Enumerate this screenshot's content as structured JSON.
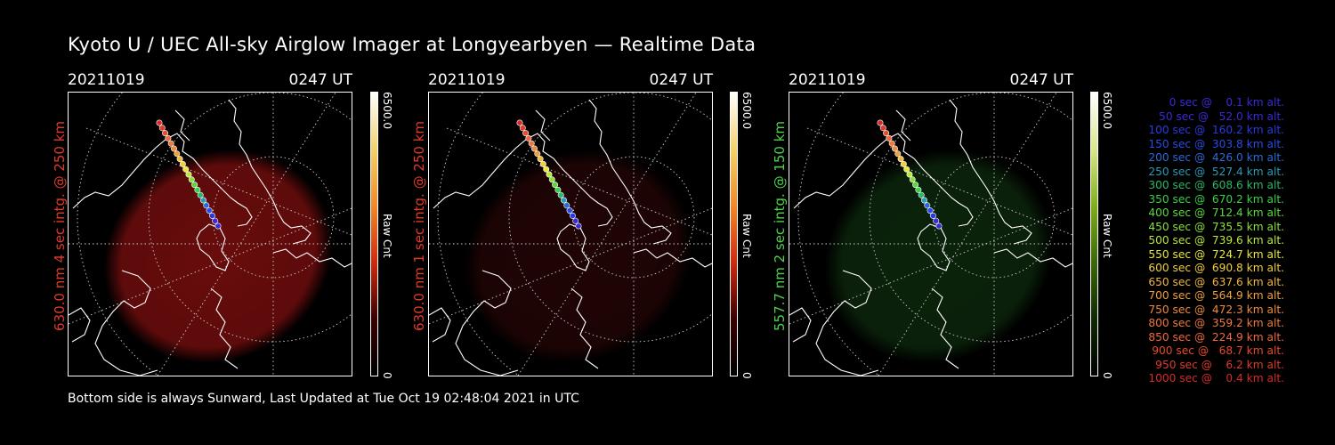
{
  "title": "Kyoto U / UEC All-sky Airglow Imager at Longyearbyen — Realtime Data",
  "footer": "Bottom side is always Sunward, Last Updated at Tue Oct 19 02:48:04 2021 in UTC",
  "panels": [
    {
      "date": "20211019",
      "time": "0247 UT",
      "label": "630.0 nm 4 sec intg. @ 250 km",
      "label_color": "#e03a2a",
      "glow_color": "#8b1010",
      "glow_opacity": 0.75,
      "cbar_max": "6500.0",
      "cbar_min": "0",
      "cbar_unit": "Raw Cnt",
      "cbar_gradient": [
        "#ffffff",
        "#f4d26a",
        "#ef8a2a",
        "#d02a10",
        "#3a0000",
        "#000000"
      ]
    },
    {
      "date": "20211019",
      "time": "0247 UT",
      "label": "630.0 nm 1 sec intg. @ 250 km",
      "label_color": "#e03a2a",
      "glow_color": "#3a0808",
      "glow_opacity": 0.55,
      "cbar_max": "6500.0",
      "cbar_min": "0",
      "cbar_unit": "Raw Cnt",
      "cbar_gradient": [
        "#ffffff",
        "#f4d26a",
        "#ef8a2a",
        "#d02a10",
        "#3a0000",
        "#000000"
      ]
    },
    {
      "date": "20211019",
      "time": "0247 UT",
      "label": "557.7 nm 2 sec intg. @ 150 km",
      "label_color": "#4ed24e",
      "glow_color": "#123a12",
      "glow_opacity": 0.6,
      "cbar_max": "6500.0",
      "cbar_min": "0",
      "cbar_unit": "Raw Cnt",
      "cbar_gradient": [
        "#ffffff",
        "#d8e88a",
        "#7fb01a",
        "#3a6a08",
        "#0f2a00",
        "#000000"
      ]
    }
  ],
  "legend": [
    {
      "text": "   0 sec @    0.1 km alt.",
      "color": "#3a2ad8"
    },
    {
      "text": "  50 sec @   52.0 km alt.",
      "color": "#3a2ad8"
    },
    {
      "text": " 100 sec @  160.2 km alt.",
      "color": "#2a3ae0"
    },
    {
      "text": " 150 sec @  303.8 km alt.",
      "color": "#2a4ae8"
    },
    {
      "text": " 200 sec @  426.0 km alt.",
      "color": "#2a6ad8"
    },
    {
      "text": " 250 sec @  527.4 km alt.",
      "color": "#2a9ab8"
    },
    {
      "text": " 300 sec @  608.6 km alt.",
      "color": "#2ab86a"
    },
    {
      "text": " 350 sec @  670.2 km alt.",
      "color": "#3ad04a"
    },
    {
      "text": " 400 sec @  712.4 km alt.",
      "color": "#5ad83a"
    },
    {
      "text": " 450 sec @  735.5 km alt.",
      "color": "#8ae03a"
    },
    {
      "text": " 500 sec @  739.6 km alt.",
      "color": "#b8e83a"
    },
    {
      "text": " 550 sec @  724.7 km alt.",
      "color": "#e8e83a"
    },
    {
      "text": " 600 sec @  690.8 km alt.",
      "color": "#f0d03a"
    },
    {
      "text": " 650 sec @  637.6 km alt.",
      "color": "#f0b83a"
    },
    {
      "text": " 700 sec @  564.9 km alt.",
      "color": "#f0a03a"
    },
    {
      "text": " 750 sec @  472.3 km alt.",
      "color": "#f08a3a"
    },
    {
      "text": " 800 sec @  359.2 km alt.",
      "color": "#f0783a"
    },
    {
      "text": " 850 sec @  224.9 km alt.",
      "color": "#f0683a"
    },
    {
      "text": " 900 sec @   68.7 km alt.",
      "color": "#e84a2a"
    },
    {
      "text": " 950 sec @    6.2 km alt.",
      "color": "#e03a2a"
    },
    {
      "text": "1000 sec @    0.4 km alt.",
      "color": "#d82a2a"
    }
  ]
}
